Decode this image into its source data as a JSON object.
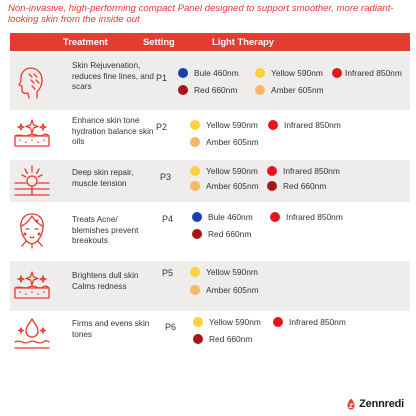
{
  "intro": "Non-invasive, high-performing compact Panel designed to support smoother, more radiant-looking skin from the inside out",
  "header": {
    "treatment": "Treatment",
    "setting": "Setting",
    "light": "Light Therapy"
  },
  "colors": {
    "accent": "#e63b2e",
    "blue": "#1b3faa",
    "yellow": "#fdd13b",
    "red": "#e8161b",
    "dark_red": "#a91419",
    "amber": "#f9b664"
  },
  "rows": [
    {
      "icon": "face-rejuvenation-icon",
      "treatment": "Skin Rejuvenation, reduces fine lines, and scars",
      "setting": "P1",
      "lights": [
        {
          "label": "Bule 460nm",
          "color": "blue"
        },
        {
          "label": "Yellow 590nm",
          "color": "yellow"
        },
        {
          "label": "Infrared 850nm",
          "color": "red"
        },
        {
          "label": "Red 660nm",
          "color": "dark_red"
        },
        {
          "label": "Amber 605nm",
          "color": "amber"
        }
      ]
    },
    {
      "icon": "skin-layer-sparkle-icon",
      "treatment": "Enhance skin tone hydration balance skin oils",
      "setting": "P2",
      "lights": [
        {
          "label": "Yellow 590nm",
          "color": "yellow"
        },
        {
          "label": "Infrared 850nm",
          "color": "red"
        },
        {
          "label": "Amber 605nm",
          "color": "amber"
        }
      ]
    },
    {
      "icon": "deep-skin-repair-icon",
      "treatment": "Deep skin repair, muscle tension",
      "setting": "P3",
      "lights": [
        {
          "label": "Yellow 590nm",
          "color": "yellow"
        },
        {
          "label": "Infrared 850nm",
          "color": "red"
        },
        {
          "label": "Amber 605nm",
          "color": "amber"
        },
        {
          "label": "Red 660nm",
          "color": "dark_red"
        }
      ]
    },
    {
      "icon": "acne-face-icon",
      "treatment": "Treats Acne/ blemishes prevent breakouts",
      "setting": "P4",
      "lights": [
        {
          "label": "Bule 460nm",
          "color": "blue"
        },
        {
          "label": "Infrared 850nm",
          "color": "red"
        },
        {
          "label": "Red 660nm",
          "color": "dark_red"
        }
      ]
    },
    {
      "icon": "skin-brighten-icon",
      "treatment": "Brightens dull skin Calms redness",
      "setting": "P5",
      "lights": [
        {
          "label": "Yellow 590nm",
          "color": "yellow"
        },
        {
          "label": "Amber 605nm",
          "color": "amber"
        }
      ]
    },
    {
      "icon": "skin-tone-drop-icon",
      "treatment": "Firms and evens skin tones",
      "setting": "P6",
      "lights": [
        {
          "label": "Yellow 590nm",
          "color": "yellow"
        },
        {
          "label": "Infrared 850nm",
          "color": "red"
        },
        {
          "label": "Red 660nm",
          "color": "dark_red"
        }
      ]
    }
  ],
  "brand": "Zennredi"
}
